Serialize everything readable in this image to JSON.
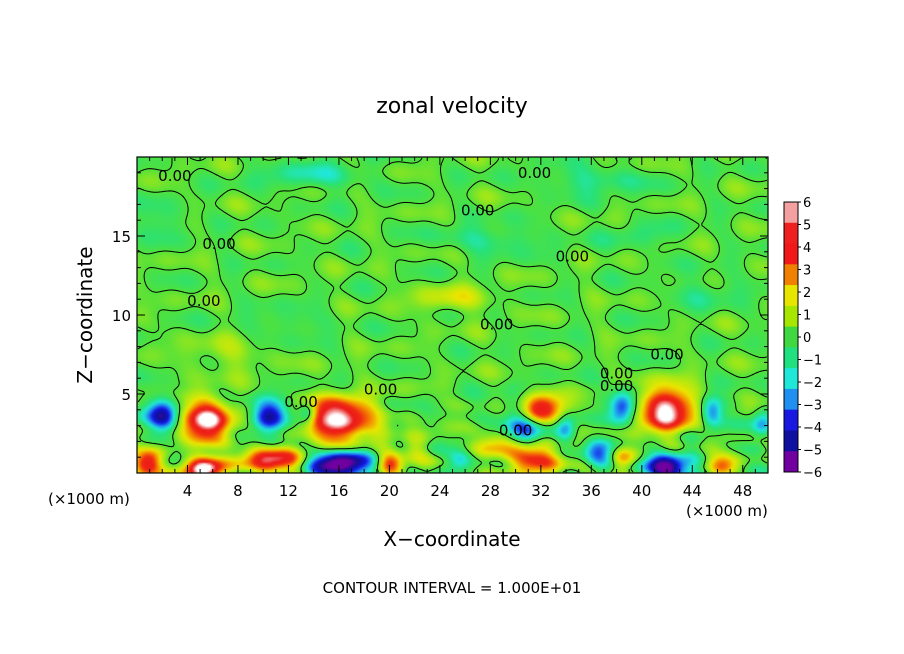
{
  "chart_data": {
    "type": "heatmap",
    "title": "zonal velocity",
    "xlabel": "X−coordinate",
    "ylabel": "Z−coordinate",
    "x_unit_left": "(×1000 m)",
    "x_unit_right": "(×1000 m)",
    "xlim": [
      0,
      50
    ],
    "ylim": [
      0,
      20
    ],
    "x_ticks": [
      4,
      8,
      12,
      16,
      20,
      24,
      28,
      32,
      36,
      40,
      44,
      48
    ],
    "y_ticks": [
      5,
      10,
      15
    ],
    "colorbar": {
      "ticks": [
        6,
        5,
        4,
        3,
        2,
        1,
        0,
        -1,
        -2,
        -3,
        -4,
        -5,
        -6
      ],
      "tick_labels": [
        "6",
        "5",
        "4",
        "3",
        "2",
        "1",
        "0",
        "−1",
        "−2",
        "−3",
        "−4",
        "−5",
        "−6"
      ],
      "colors": [
        "#f4a0a0",
        "#ee2020",
        "#f01818",
        "#f08000",
        "#e6e600",
        "#a6e600",
        "#40d840",
        "#20e080",
        "#20e8d8",
        "#2090f0",
        "#1818e0",
        "#1010a0",
        "#7000a0"
      ]
    },
    "blobs": [
      {
        "x": 5.5,
        "z": 3.3,
        "v": 6.5,
        "sx": 1.9,
        "sz": 1.3
      },
      {
        "x": 2.0,
        "z": 3.6,
        "v": -4.8,
        "sx": 1.2,
        "sz": 1.1
      },
      {
        "x": 10.5,
        "z": 3.6,
        "v": -5.2,
        "sx": 1.4,
        "sz": 1.0
      },
      {
        "x": 16.0,
        "z": 3.4,
        "v": 6.8,
        "sx": 2.6,
        "sz": 1.3
      },
      {
        "x": 13.5,
        "z": 3.8,
        "v": -3.0,
        "sx": 0.7,
        "sz": 0.7
      },
      {
        "x": 31.8,
        "z": 4.0,
        "v": 6.6,
        "sx": 1.8,
        "sz": 0.9
      },
      {
        "x": 30.5,
        "z": 3.2,
        "v": -4.5,
        "sx": 1.7,
        "sz": 1.4
      },
      {
        "x": 34.0,
        "z": 2.8,
        "v": -3.0,
        "sx": 0.8,
        "sz": 0.9
      },
      {
        "x": 38.5,
        "z": 4.2,
        "v": -4.0,
        "sx": 1.0,
        "sz": 1.0
      },
      {
        "x": 42.0,
        "z": 4.0,
        "v": 6.7,
        "sx": 2.0,
        "sz": 1.4
      },
      {
        "x": 45.5,
        "z": 3.8,
        "v": -3.5,
        "sx": 0.9,
        "sz": 1.0
      },
      {
        "x": 1.0,
        "z": 0.7,
        "v": 5.2,
        "sx": 1.1,
        "sz": 0.8
      },
      {
        "x": 5.3,
        "z": 0.3,
        "v": 6.5,
        "sx": 1.6,
        "sz": 0.7
      },
      {
        "x": 10.8,
        "z": 0.8,
        "v": 5.0,
        "sx": 2.4,
        "sz": 0.8
      },
      {
        "x": 16.0,
        "z": 0.5,
        "v": -6.8,
        "sx": 2.3,
        "sz": 0.9
      },
      {
        "x": 20.0,
        "z": 0.6,
        "v": 3.5,
        "sx": 1.0,
        "sz": 0.7
      },
      {
        "x": 22.0,
        "z": 1.5,
        "v": 2.0,
        "sx": 1.2,
        "sz": 0.7
      },
      {
        "x": 25.5,
        "z": 0.8,
        "v": -2.5,
        "sx": 1.0,
        "sz": 0.7
      },
      {
        "x": 28.5,
        "z": 2.0,
        "v": 2.8,
        "sx": 1.6,
        "sz": 0.8
      },
      {
        "x": 31.5,
        "z": 0.8,
        "v": 4.2,
        "sx": 2.4,
        "sz": 1.0
      },
      {
        "x": 36.5,
        "z": 1.2,
        "v": -3.2,
        "sx": 1.3,
        "sz": 1.0
      },
      {
        "x": 38.5,
        "z": 0.9,
        "v": 3.2,
        "sx": 1.0,
        "sz": 0.8
      },
      {
        "x": 42.0,
        "z": 0.4,
        "v": -6.5,
        "sx": 1.9,
        "sz": 0.8
      },
      {
        "x": 46.5,
        "z": 0.5,
        "v": 2.8,
        "sx": 1.2,
        "sz": 0.7
      },
      {
        "x": 49.5,
        "z": 3.0,
        "v": -2.5,
        "sx": 0.8,
        "sz": 1.0
      },
      {
        "x": 25.0,
        "z": 11.0,
        "v": 1.6,
        "sx": 3.0,
        "sz": 0.8
      },
      {
        "x": 7.0,
        "z": 7.5,
        "v": 1.0,
        "sx": 3.0,
        "sz": 1.0
      },
      {
        "x": 14.0,
        "z": 18.8,
        "v": -1.5,
        "sx": 4.0,
        "sz": 0.8
      },
      {
        "x": 36.0,
        "z": 18.5,
        "v": -1.4,
        "sx": 4.0,
        "sz": 0.8
      },
      {
        "x": 28.0,
        "z": 14.8,
        "v": -1.3,
        "sx": 4.0,
        "sz": 0.8
      },
      {
        "x": 2.0,
        "z": 16.0,
        "v": -1.0,
        "sx": 2.0,
        "sz": 1.0
      },
      {
        "x": 45.0,
        "z": 11.5,
        "v": -0.9,
        "sx": 3.0,
        "sz": 1.0
      },
      {
        "x": 12.0,
        "z": 9.5,
        "v": -0.9,
        "sx": 3.0,
        "sz": 0.8
      },
      {
        "x": 40.0,
        "z": 15.0,
        "v": -0.8,
        "sx": 3.0,
        "sz": 0.8
      }
    ],
    "contour_level": 0,
    "contour_labels": [
      {
        "x": 3.0,
        "z": 18.8,
        "text": "0.00"
      },
      {
        "x": 31.5,
        "z": 19.0,
        "text": "0.00"
      },
      {
        "x": 27.0,
        "z": 16.6,
        "text": "0.00"
      },
      {
        "x": 6.5,
        "z": 14.5,
        "text": "0.00"
      },
      {
        "x": 34.5,
        "z": 13.7,
        "text": "0.00"
      },
      {
        "x": 5.3,
        "z": 10.9,
        "text": "0.00"
      },
      {
        "x": 28.5,
        "z": 9.4,
        "text": "0.00"
      },
      {
        "x": 42.0,
        "z": 7.5,
        "text": "0.00"
      },
      {
        "x": 38.0,
        "z": 6.3,
        "text": "0.00"
      },
      {
        "x": 38.0,
        "z": 5.5,
        "text": "0.00"
      },
      {
        "x": 19.3,
        "z": 5.3,
        "text": "0.00"
      },
      {
        "x": 13.0,
        "z": 4.5,
        "text": "0.00"
      },
      {
        "x": 30.0,
        "z": 2.7,
        "text": "0.00"
      }
    ]
  },
  "footer": "CONTOUR INTERVAL = 1.000E+01"
}
